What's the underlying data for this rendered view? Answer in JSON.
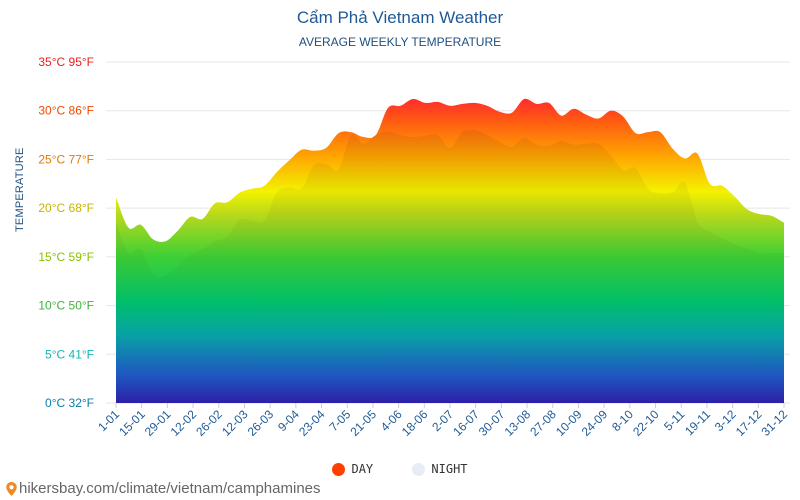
{
  "header": {
    "title": "Cẩm Phả Vietnam Weather",
    "subtitle": "AVERAGE WEEKLY TEMPERATURE"
  },
  "footer": {
    "url": "hikersbay.com/climate/vietnam/camphamines"
  },
  "colors": {
    "day_legend": "#ff4000",
    "night_legend": "#e6edf5",
    "grid": "#e6e6e6",
    "title": "#1f5a96"
  },
  "chart_data": {
    "type": "area",
    "title": "Cẩm Phả Vietnam Weather",
    "subtitle": "AVERAGE WEEKLY TEMPERATURE",
    "ylabel": "TEMPERATURE",
    "xlabel": "",
    "ylim": [
      0,
      35
    ],
    "grid": true,
    "legend_position": "bottom",
    "y_ticks": [
      {
        "value": 0,
        "label": "0°C 32°F",
        "color": "#0a7bb0"
      },
      {
        "value": 5,
        "label": "5°C 41°F",
        "color": "#14b5b5"
      },
      {
        "value": 10,
        "label": "10°C 50°F",
        "color": "#3cb43c"
      },
      {
        "value": 15,
        "label": "15°C 59°F",
        "color": "#8ac000"
      },
      {
        "value": 20,
        "label": "20°C 68°F",
        "color": "#c8b400"
      },
      {
        "value": 25,
        "label": "25°C 77°F",
        "color": "#e87800"
      },
      {
        "value": 30,
        "label": "30°C 86°F",
        "color": "#ef4a00"
      },
      {
        "value": 35,
        "label": "35°C 95°F",
        "color": "#e81e1e"
      }
    ],
    "x_labels": [
      "1-01",
      "15-01",
      "29-01",
      "12-02",
      "26-02",
      "12-03",
      "26-03",
      "9-04",
      "23-04",
      "7-05",
      "21-05",
      "4-06",
      "18-06",
      "2-07",
      "16-07",
      "30-07",
      "13-08",
      "27-08",
      "10-09",
      "24-09",
      "8-10",
      "22-10",
      "5-11",
      "19-11",
      "3-12",
      "17-12",
      "31-12"
    ],
    "series": [
      {
        "name": "DAY",
        "values": [
          21.1,
          18.0,
          18.3,
          16.8,
          16.6,
          17.7,
          19.1,
          18.9,
          20.5,
          20.6,
          21.6,
          22.0,
          22.3,
          23.7,
          24.9,
          26.0,
          25.9,
          26.2,
          27.7,
          27.8,
          27.3,
          27.5,
          30.3,
          30.5,
          31.2,
          30.8,
          30.9,
          30.5,
          30.7,
          30.8,
          30.5,
          29.9,
          29.8,
          31.2,
          30.7,
          30.8,
          29.5,
          30.2,
          29.6,
          29.2,
          30.0,
          29.4,
          27.7,
          27.8,
          27.8,
          26.1,
          25.1,
          25.6,
          22.5,
          22.3,
          21.2,
          19.9,
          19.4,
          19.2,
          18.5
        ]
      },
      {
        "name": "NIGHT",
        "values": [
          18.5,
          15.4,
          15.8,
          13.3,
          13.1,
          14.1,
          15.2,
          15.8,
          16.6,
          17.1,
          18.8,
          18.7,
          18.7,
          21.6,
          22.1,
          22.0,
          24.4,
          24.5,
          24.0,
          27.5,
          26.6,
          27.5,
          27.9,
          27.5,
          27.3,
          27.4,
          27.5,
          26.2,
          27.8,
          28.0,
          27.5,
          26.8,
          26.3,
          27.2,
          26.5,
          26.4,
          26.9,
          26.5,
          26.6,
          26.6,
          25.4,
          23.9,
          24.1,
          22.0,
          21.5,
          21.6,
          22.6,
          18.6,
          17.6,
          16.9,
          16.3,
          15.9,
          15.4,
          15.4,
          15.4
        ]
      }
    ]
  }
}
